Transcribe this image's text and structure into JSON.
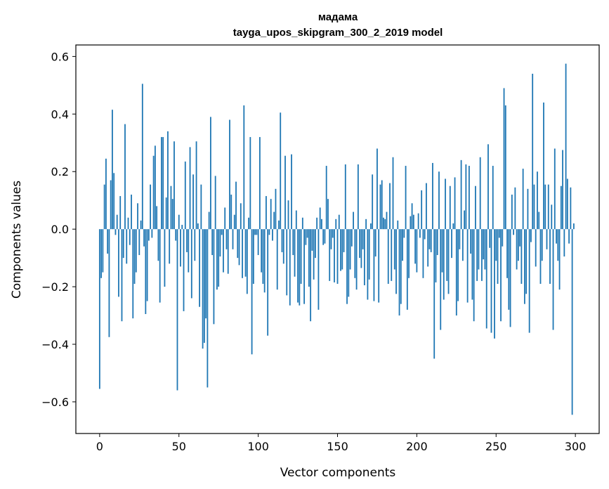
{
  "chart_data": {
    "type": "bar",
    "title": "мадама",
    "subtitle": "tayga_upos_skipgram_300_2_2019 model",
    "xlabel": "Vector components",
    "ylabel": "Components values",
    "xlim": [
      -15,
      315
    ],
    "ylim": [
      -0.71,
      0.64
    ],
    "xticks": [
      0,
      50,
      100,
      150,
      200,
      250,
      300
    ],
    "xtick_labels": [
      "0",
      "50",
      "100",
      "150",
      "200",
      "250",
      "300"
    ],
    "yticks": [
      -0.6,
      -0.4,
      -0.2,
      0.0,
      0.2,
      0.4,
      0.6
    ],
    "ytick_labels": [
      "−0.6",
      "−0.4",
      "−0.2",
      "0.0",
      "0.2",
      "0.4",
      "0.6"
    ],
    "bar_color": "#1f77b4",
    "x": "0..299",
    "values": [
      -0.555,
      -0.17,
      -0.15,
      0.155,
      0.245,
      -0.085,
      -0.375,
      0.17,
      0.415,
      0.195,
      -0.02,
      0.05,
      -0.235,
      0.115,
      -0.32,
      -0.1,
      0.365,
      -0.12,
      0.04,
      -0.055,
      0.12,
      -0.31,
      -0.19,
      -0.15,
      0.09,
      -0.09,
      0.03,
      0.505,
      -0.06,
      -0.295,
      -0.25,
      -0.04,
      0.155,
      -0.03,
      0.255,
      0.29,
      0.08,
      -0.11,
      -0.255,
      0.32,
      0.32,
      -0.2,
      0.11,
      0.34,
      -0.12,
      0.15,
      0.105,
      0.305,
      -0.04,
      -0.56,
      0.05,
      -0.13,
      0.015,
      -0.285,
      0.235,
      -0.08,
      -0.15,
      0.285,
      -0.24,
      0.19,
      -0.11,
      0.305,
      0.02,
      -0.27,
      0.155,
      -0.415,
      -0.395,
      -0.31,
      -0.55,
      0.06,
      0.39,
      -0.09,
      -0.33,
      0.185,
      -0.21,
      -0.2,
      -0.095,
      -0.02,
      -0.15,
      0.075,
      -0.07,
      -0.155,
      0.38,
      0.12,
      -0.07,
      0.05,
      0.165,
      -0.1,
      -0.125,
      0.09,
      -0.17,
      0.43,
      -0.165,
      -0.225,
      0.04,
      0.32,
      -0.435,
      -0.19,
      -0.02,
      -0.02,
      -0.09,
      0.32,
      -0.15,
      -0.19,
      -0.22,
      0.115,
      -0.37,
      -0.02,
      0.105,
      -0.04,
      0.06,
      0.14,
      -0.21,
      0.03,
      0.405,
      -0.08,
      -0.12,
      0.255,
      -0.23,
      0.1,
      -0.265,
      0.26,
      -0.09,
      -0.165,
      0.065,
      -0.255,
      -0.265,
      -0.19,
      0.04,
      -0.26,
      -0.055,
      -0.03,
      -0.2,
      -0.32,
      -0.075,
      -0.175,
      -0.1,
      0.04,
      -0.28,
      0.075,
      0.035,
      -0.055,
      -0.05,
      0.22,
      0.105,
      -0.18,
      -0.07,
      -0.03,
      -0.185,
      0.035,
      -0.19,
      0.05,
      -0.145,
      -0.14,
      -0.08,
      0.225,
      -0.26,
      -0.235,
      -0.14,
      -0.06,
      0.06,
      -0.17,
      -0.21,
      0.225,
      -0.1,
      -0.135,
      -0.07,
      -0.195,
      0.035,
      -0.245,
      -0.175,
      0.02,
      0.19,
      -0.25,
      -0.095,
      0.28,
      -0.255,
      0.155,
      0.17,
      0.04,
      0.035,
      0.06,
      -0.19,
      0.16,
      -0.18,
      0.25,
      -0.14,
      -0.225,
      0.03,
      -0.3,
      -0.26,
      -0.11,
      -0.03,
      0.22,
      -0.28,
      -0.17,
      0.045,
      0.09,
      0.05,
      -0.12,
      -0.15,
      0.055,
      -0.03,
      0.135,
      -0.17,
      -0.035,
      0.16,
      -0.13,
      -0.07,
      -0.08,
      0.23,
      -0.45,
      -0.185,
      -0.09,
      0.2,
      -0.35,
      -0.15,
      -0.245,
      0.175,
      -0.18,
      -0.225,
      0.15,
      -0.1,
      0.02,
      0.18,
      -0.3,
      -0.25,
      -0.07,
      0.24,
      -0.11,
      0.065,
      0.225,
      -0.255,
      0.22,
      -0.085,
      -0.245,
      -0.32,
      0.15,
      -0.18,
      -0.14,
      0.25,
      -0.18,
      -0.105,
      -0.14,
      -0.345,
      0.295,
      -0.065,
      -0.36,
      0.22,
      -0.38,
      -0.11,
      -0.19,
      -0.03,
      -0.32,
      -0.06,
      0.49,
      0.43,
      -0.17,
      -0.28,
      -0.34,
      0.12,
      -0.02,
      0.145,
      -0.14,
      -0.11,
      -0.06,
      -0.19,
      0.21,
      -0.26,
      -0.225,
      0.14,
      -0.36,
      -0.045,
      0.54,
      0.155,
      -0.13,
      0.2,
      0.06,
      -0.19,
      -0.11,
      0.44,
      0.155,
      -0.07,
      0.155,
      -0.19,
      0.085,
      -0.35,
      0.28,
      -0.05,
      -0.11,
      -0.21,
      0.15,
      0.275,
      -0.095,
      0.575,
      0.175,
      -0.05,
      0.145,
      -0.645,
      0.02
    ]
  }
}
